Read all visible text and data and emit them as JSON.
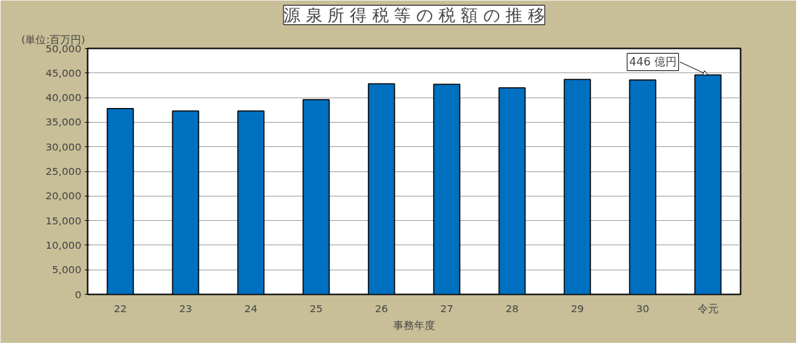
{
  "chart_data": {
    "type": "bar",
    "title": "源 泉 所 得 税 等 の 税 額 の 推 移",
    "ylabel": "(単位:百万円)",
    "xlabel": "事務年度",
    "categories": [
      "22",
      "23",
      "24",
      "25",
      "26",
      "27",
      "28",
      "29",
      "30",
      "令元"
    ],
    "values": [
      37800,
      37300,
      37300,
      39600,
      42800,
      42700,
      42000,
      43700,
      43600,
      44600
    ],
    "color": "#0070c0",
    "ylim": [
      0,
      50000
    ],
    "yticks": [
      0,
      {
        "value": 5000,
        "label": "5,000"
      },
      {
        "value": 10000,
        "label": "10,000"
      },
      {
        "value": 15000,
        "label": "15,000"
      },
      {
        "value": 20000,
        "label": "20,000"
      },
      {
        "value": 25000,
        "label": "25,000"
      },
      {
        "value": 30000,
        "label": "30,000"
      },
      {
        "value": 35000,
        "label": "35,000"
      },
      {
        "value": 40000,
        "label": "40,000"
      },
      {
        "value": 45000,
        "label": "45,000"
      },
      {
        "value": 50000,
        "label": "50,000"
      }
    ],
    "grid": "y",
    "annotations": [
      {
        "text": "446 億円",
        "x": "令元",
        "y": 44600
      }
    ]
  }
}
